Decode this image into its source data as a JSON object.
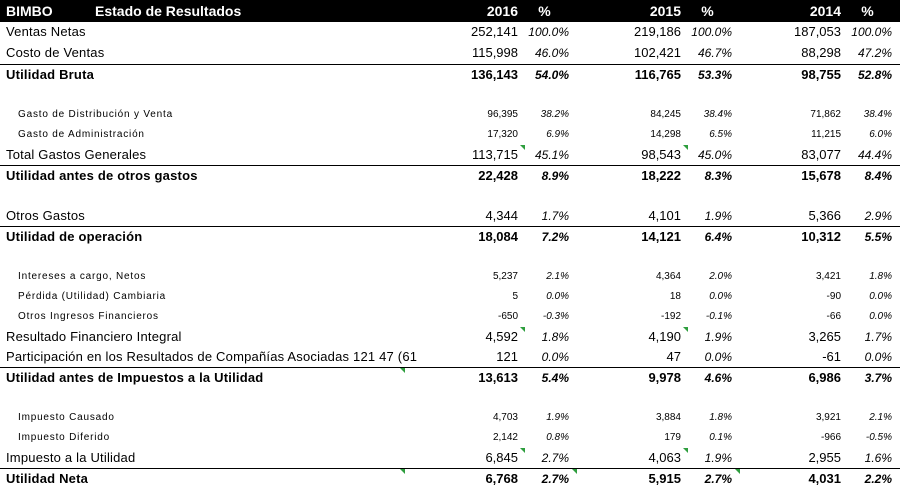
{
  "header": {
    "company": "BIMBO",
    "title": "Estado de Resultados",
    "y2016": "2016",
    "y2015": "2015",
    "y2014": "2014",
    "pct": "%"
  },
  "rows": [
    {
      "label": "Ventas Netas",
      "v2016": "252,141",
      "p2016": "100.0%",
      "v2015": "219,186",
      "p2015": "100.0%",
      "v2014": "187,053",
      "p2014": "100.0%"
    },
    {
      "label": "Costo de Ventas",
      "v2016": "115,998",
      "p2016": "46.0%",
      "v2015": "102,421",
      "p2015": "46.7%",
      "v2014": "88,298",
      "p2014": "47.2%"
    },
    {
      "label": "Utilidad Bruta",
      "v2016": "136,143",
      "p2016": "54.0%",
      "v2015": "116,765",
      "p2015": "53.3%",
      "v2014": "98,755",
      "p2014": "52.8%"
    },
    {
      "label": "Gasto de Distribución y Venta",
      "v2016": "96,395",
      "p2016": "38.2%",
      "v2015": "84,245",
      "p2015": "38.4%",
      "v2014": "71,862",
      "p2014": "38.4%"
    },
    {
      "label": "Gasto de Administración",
      "v2016": "17,320",
      "p2016": "6.9%",
      "v2015": "14,298",
      "p2015": "6.5%",
      "v2014": "11,215",
      "p2014": "6.0%"
    },
    {
      "label": "Total Gastos Generales",
      "v2016": "113,715",
      "p2016": "45.1%",
      "v2015": "98,543",
      "p2015": "45.0%",
      "v2014": "83,077",
      "p2014": "44.4%"
    },
    {
      "label": "Utilidad antes de otros gastos",
      "v2016": "22,428",
      "p2016": "8.9%",
      "v2015": "18,222",
      "p2015": "8.3%",
      "v2014": "15,678",
      "p2014": "8.4%"
    },
    {
      "label": "Otros Gastos",
      "v2016": "4,344",
      "p2016": "1.7%",
      "v2015": "4,101",
      "p2015": "1.9%",
      "v2014": "5,366",
      "p2014": "2.9%"
    },
    {
      "label": "Utilidad de operación",
      "v2016": "18,084",
      "p2016": "7.2%",
      "v2015": "14,121",
      "p2015": "6.4%",
      "v2014": "10,312",
      "p2014": "5.5%"
    },
    {
      "label": "Intereses a cargo, Netos",
      "v2016": "5,237",
      "p2016": "2.1%",
      "v2015": "4,364",
      "p2015": "2.0%",
      "v2014": "3,421",
      "p2014": "1.8%"
    },
    {
      "label": "Pérdida (Utilidad) Cambiaria",
      "v2016": "5",
      "p2016": "0.0%",
      "v2015": "18",
      "p2015": "0.0%",
      "v2014": "-90",
      "p2014": "0.0%"
    },
    {
      "label": "Otros Ingresos Financieros",
      "v2016": "-650",
      "p2016": "-0.3%",
      "v2015": "-192",
      "p2015": "-0.1%",
      "v2014": "-66",
      "p2014": "0.0%"
    },
    {
      "label": "Resultado Financiero Integral",
      "v2016": "4,592",
      "p2016": "1.8%",
      "v2015": "4,190",
      "p2015": "1.9%",
      "v2014": "3,265",
      "p2014": "1.7%"
    },
    {
      "label": "Participación en los Resultados de Compañías Asociadas 121 47 (61",
      "v2016": "121",
      "p2016": "0.0%",
      "v2015": "47",
      "p2015": "0.0%",
      "v2014": "-61",
      "p2014": "0.0%"
    },
    {
      "label": "Utilidad antes de Impuestos a la Utilidad",
      "v2016": "13,613",
      "p2016": "5.4%",
      "v2015": "9,978",
      "p2015": "4.6%",
      "v2014": "6,986",
      "p2014": "3.7%"
    },
    {
      "label": "Impuesto Causado",
      "v2016": "4,703",
      "p2016": "1.9%",
      "v2015": "3,884",
      "p2015": "1.8%",
      "v2014": "3,921",
      "p2014": "2.1%"
    },
    {
      "label": "Impuesto Diferido",
      "v2016": "2,142",
      "p2016": "0.8%",
      "v2015": "179",
      "p2015": "0.1%",
      "v2014": "-966",
      "p2014": "-0.5%"
    },
    {
      "label": "Impuesto a la Utilidad",
      "v2016": "6,845",
      "p2016": "2.7%",
      "v2015": "4,063",
      "p2015": "1.9%",
      "v2014": "2,955",
      "p2014": "1.6%"
    },
    {
      "label": "Utilidad Neta",
      "v2016": "6,768",
      "p2016": "2.7%",
      "v2015": "5,915",
      "p2015": "2.7%",
      "v2014": "4,031",
      "p2014": "2.2%"
    }
  ]
}
